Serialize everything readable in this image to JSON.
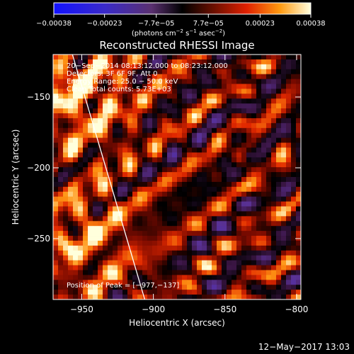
{
  "chart_data": {
    "type": "heatmap",
    "title": "Reconstructed RHESSI Image",
    "xlabel": "Heliocentric X (arcsec)",
    "ylabel": "Heliocentric Y (arcsec)",
    "xlim": [
      -970,
      -797
    ],
    "ylim": [
      -293,
      -120
    ],
    "x_ticks": [
      {
        "value": -950,
        "label": "−950"
      },
      {
        "value": -900,
        "label": "−900"
      },
      {
        "value": -850,
        "label": "−850"
      },
      {
        "value": -800,
        "label": "−800"
      }
    ],
    "y_ticks": [
      {
        "value": -150,
        "label": "−150"
      },
      {
        "value": -200,
        "label": "−200"
      },
      {
        "value": -250,
        "label": "−250"
      }
    ],
    "colorbar": {
      "range": [
        -0.00038,
        0.00038
      ],
      "ticks": [
        {
          "value": -0.00038,
          "label": "−0.00038"
        },
        {
          "value": -0.00023,
          "label": "−0.00023"
        },
        {
          "value": -7.7e-05,
          "label": "−7.7e−05"
        },
        {
          "value": 7.7e-05,
          "label": "7.7e−05"
        },
        {
          "value": 0.00023,
          "label": "0.00023"
        },
        {
          "value": 0.00038,
          "label": "0.00038"
        }
      ],
      "units_prefix": "(photons cm",
      "units_exp1": "−2",
      "units_mid": " s",
      "units_exp2": "−1",
      "units_mid2": " asec",
      "units_exp3": "−2",
      "units_suffix": ")"
    },
    "annotations": [
      "20−Sep−2014 08:13:12.000 to 08:23:12.000",
      "Detectors: 3F 6F 9F, Att 0",
      "Energy Range: 25.0 − 50.0 keV",
      "Clean   Total counts: 5.73E+03"
    ],
    "peak_label": "Position of Peak = [−977,−137]",
    "limb_line": [
      [
        -956.5,
        -120
      ],
      [
        -906,
        -293
      ]
    ]
  },
  "footer": {
    "timestamp": "12−May−2017 13:03"
  },
  "colors": {
    "background": "#000000",
    "foreground": "#ffffff"
  }
}
